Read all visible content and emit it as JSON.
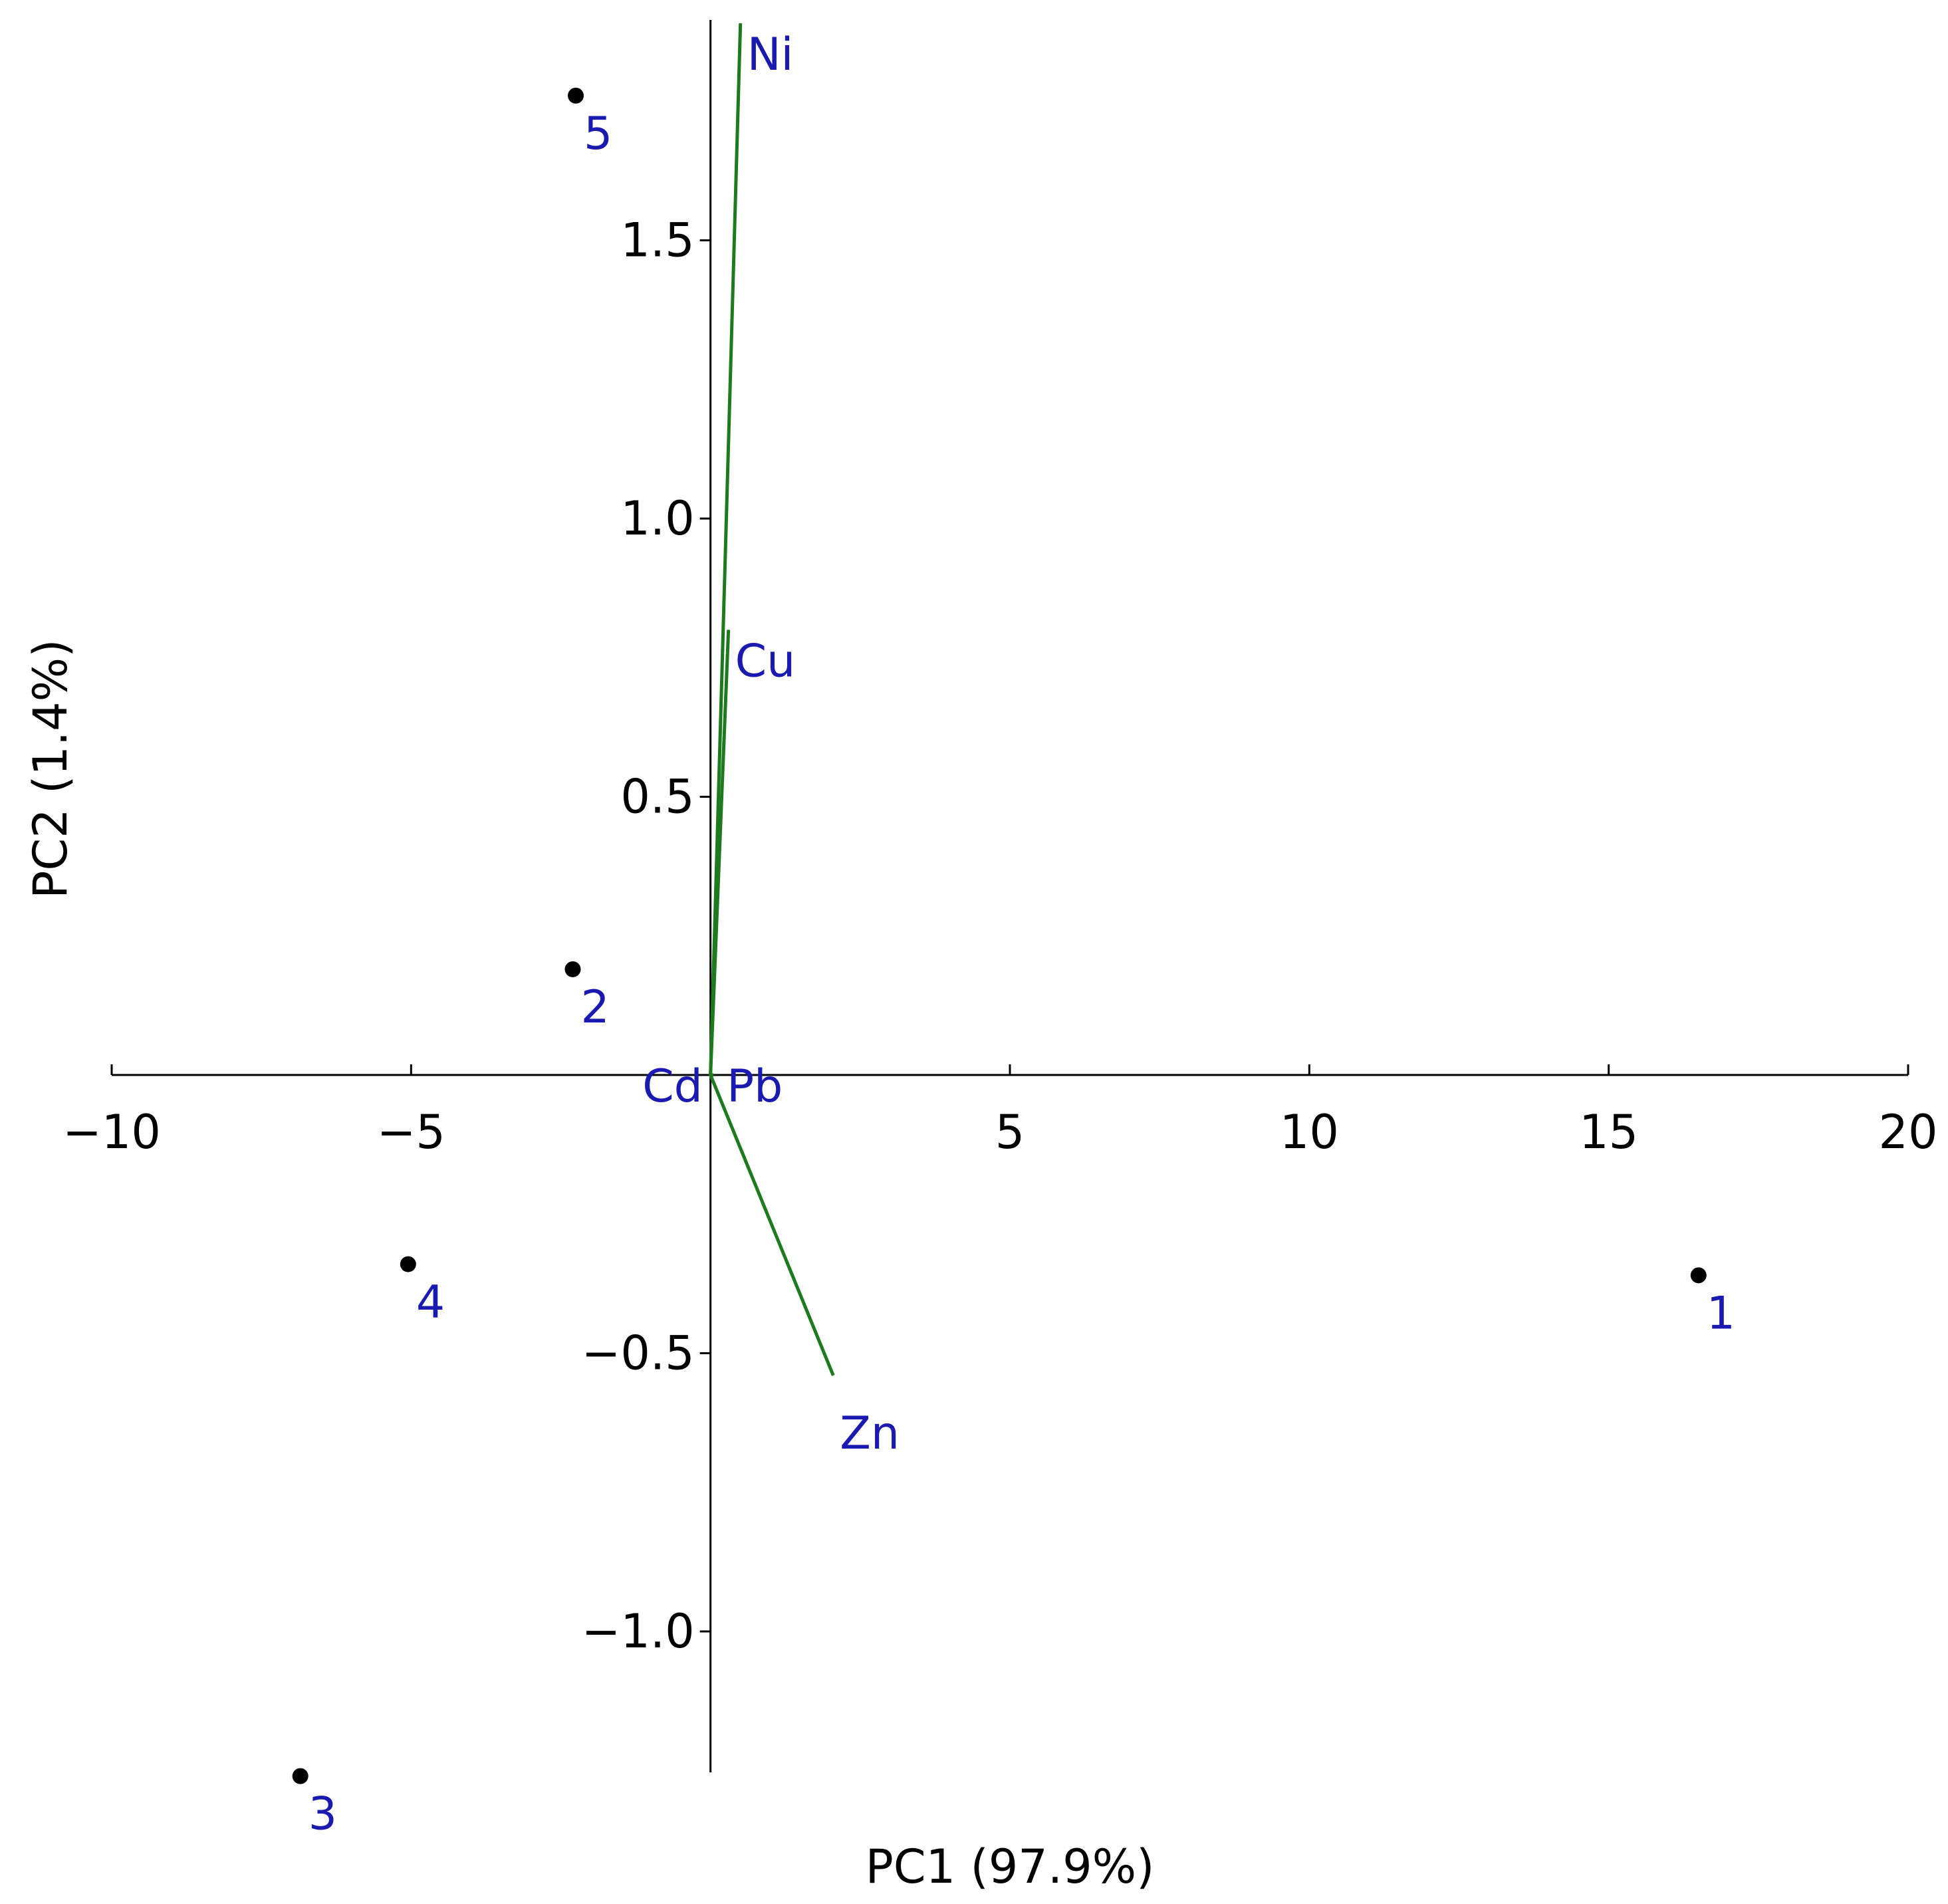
{
  "chart_data": {
    "type": "scatter",
    "xlabel": "PC1 (97.9%)",
    "ylabel": "PC2 (1.4%)",
    "xlim": [
      -10,
      20
    ],
    "ylim": [
      -1.26,
      1.9
    ],
    "x_ticks": [
      -10,
      -5,
      5,
      10,
      15,
      20
    ],
    "x_tick_labels": [
      "−10",
      "−5",
      "5",
      "10",
      "15",
      "20"
    ],
    "y_ticks": [
      -1.0,
      -0.5,
      0.5,
      1.0,
      1.5
    ],
    "y_tick_labels": [
      "−1.0",
      "−0.5",
      "0.5",
      "1.0",
      "1.5"
    ],
    "grid": false,
    "points": [
      {
        "label": "1",
        "x": 16.5,
        "y": -0.36
      },
      {
        "label": "2",
        "x": -2.3,
        "y": 0.19
      },
      {
        "label": "3",
        "x": -6.85,
        "y": -1.26
      },
      {
        "label": "4",
        "x": -5.05,
        "y": -0.34
      },
      {
        "label": "5",
        "x": -2.25,
        "y": 1.76
      }
    ],
    "loadings": [
      {
        "label": "Ni",
        "x": 0.5,
        "y": 1.89
      },
      {
        "label": "Cu",
        "x": 0.3,
        "y": 0.8
      },
      {
        "label": "Zn",
        "x": 2.05,
        "y": -0.54
      },
      {
        "label": "Cd",
        "x": -0.02,
        "y": 0.0
      },
      {
        "label": "Pb",
        "x": 0.05,
        "y": 0.0
      }
    ],
    "colors": {
      "points": "#000000",
      "point_labels": "#1a1ab0",
      "loadings": "#1e7a1e",
      "axes": "#000000"
    }
  }
}
